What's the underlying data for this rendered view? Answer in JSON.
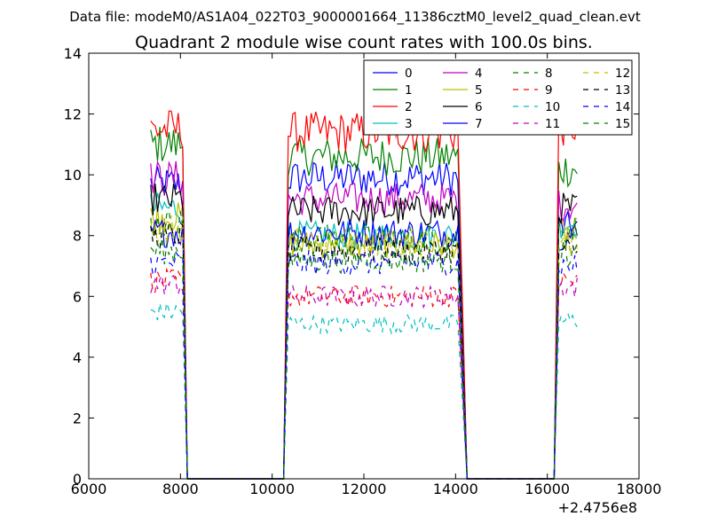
{
  "figure": {
    "suptitle": "Data file: modeM0/AS1A04_022T03_9000001664_11386cztM0_level2_quad_clean.evt"
  },
  "chart_data": {
    "type": "line",
    "title": "Quadrant 2 module wise count rates with 100.0s bins.",
    "xlabel": "",
    "ylabel": "",
    "xlim": [
      6000,
      18000
    ],
    "ylim": [
      0,
      14
    ],
    "x_offset_label": "+2.4756e8",
    "xticks": [
      6000,
      8000,
      10000,
      12000,
      14000,
      16000,
      18000
    ],
    "yticks": [
      0,
      2,
      4,
      6,
      8,
      10,
      12,
      14
    ],
    "grid": false,
    "legend": {
      "placement": "top-right",
      "columns": 4
    },
    "segments": [
      {
        "x_start": 7350,
        "x_end": 8050,
        "drop_end": 8150
      },
      {
        "x_start": 10350,
        "x_end": 14050,
        "drop_end": 14250,
        "rise_start": 10250
      },
      {
        "x_start": 16250,
        "x_end": 16650,
        "rise_start": 16150
      }
    ],
    "gap_value": 0,
    "series": [
      {
        "name": "0",
        "color": "#0000ff",
        "dash": "solid",
        "levels": [
          9.7,
          9.9,
          8.3
        ]
      },
      {
        "name": "1",
        "color": "#008000",
        "dash": "solid",
        "levels": [
          11.0,
          10.6,
          10.2
        ]
      },
      {
        "name": "2",
        "color": "#ff0000",
        "dash": "solid",
        "levels": [
          11.5,
          11.4,
          11.6
        ]
      },
      {
        "name": "3",
        "color": "#00bfbf",
        "dash": "solid",
        "levels": [
          8.9,
          8.0,
          8.4
        ]
      },
      {
        "name": "4",
        "color": "#bf00bf",
        "dash": "solid",
        "levels": [
          9.9,
          9.2,
          9.0
        ]
      },
      {
        "name": "5",
        "color": "#bfbf00",
        "dash": "solid",
        "levels": [
          8.6,
          7.7,
          8.1
        ]
      },
      {
        "name": "6",
        "color": "#000000",
        "dash": "solid",
        "levels": [
          9.2,
          8.8,
          8.9
        ]
      },
      {
        "name": "7",
        "color": "#0000ff",
        "dash": "solid",
        "levels": [
          8.1,
          8.1,
          8.0
        ]
      },
      {
        "name": "8",
        "color": "#008000",
        "dash": "dashed",
        "levels": [
          8.4,
          7.9,
          8.2
        ]
      },
      {
        "name": "9",
        "color": "#ff0000",
        "dash": "dashed",
        "levels": [
          6.5,
          6.0,
          6.5
        ]
      },
      {
        "name": "10",
        "color": "#00bfbf",
        "dash": "dashed",
        "levels": [
          5.5,
          5.1,
          5.2
        ]
      },
      {
        "name": "11",
        "color": "#bf00bf",
        "dash": "dashed",
        "levels": [
          6.4,
          6.0,
          6.3
        ]
      },
      {
        "name": "12",
        "color": "#bfbf00",
        "dash": "dashed",
        "levels": [
          8.2,
          7.8,
          7.8
        ]
      },
      {
        "name": "13",
        "color": "#000000",
        "dash": "dashed",
        "levels": [
          8.0,
          7.5,
          7.5
        ]
      },
      {
        "name": "14",
        "color": "#0000ff",
        "dash": "dashed",
        "levels": [
          7.1,
          7.1,
          7.0
        ]
      },
      {
        "name": "15",
        "color": "#008000",
        "dash": "dashed",
        "levels": [
          7.5,
          7.2,
          7.4
        ]
      }
    ],
    "extra_line": {
      "color": "#f08080",
      "dash": "solid",
      "x_start": 12650,
      "x_end": 14050,
      "level": 11.6
    }
  }
}
